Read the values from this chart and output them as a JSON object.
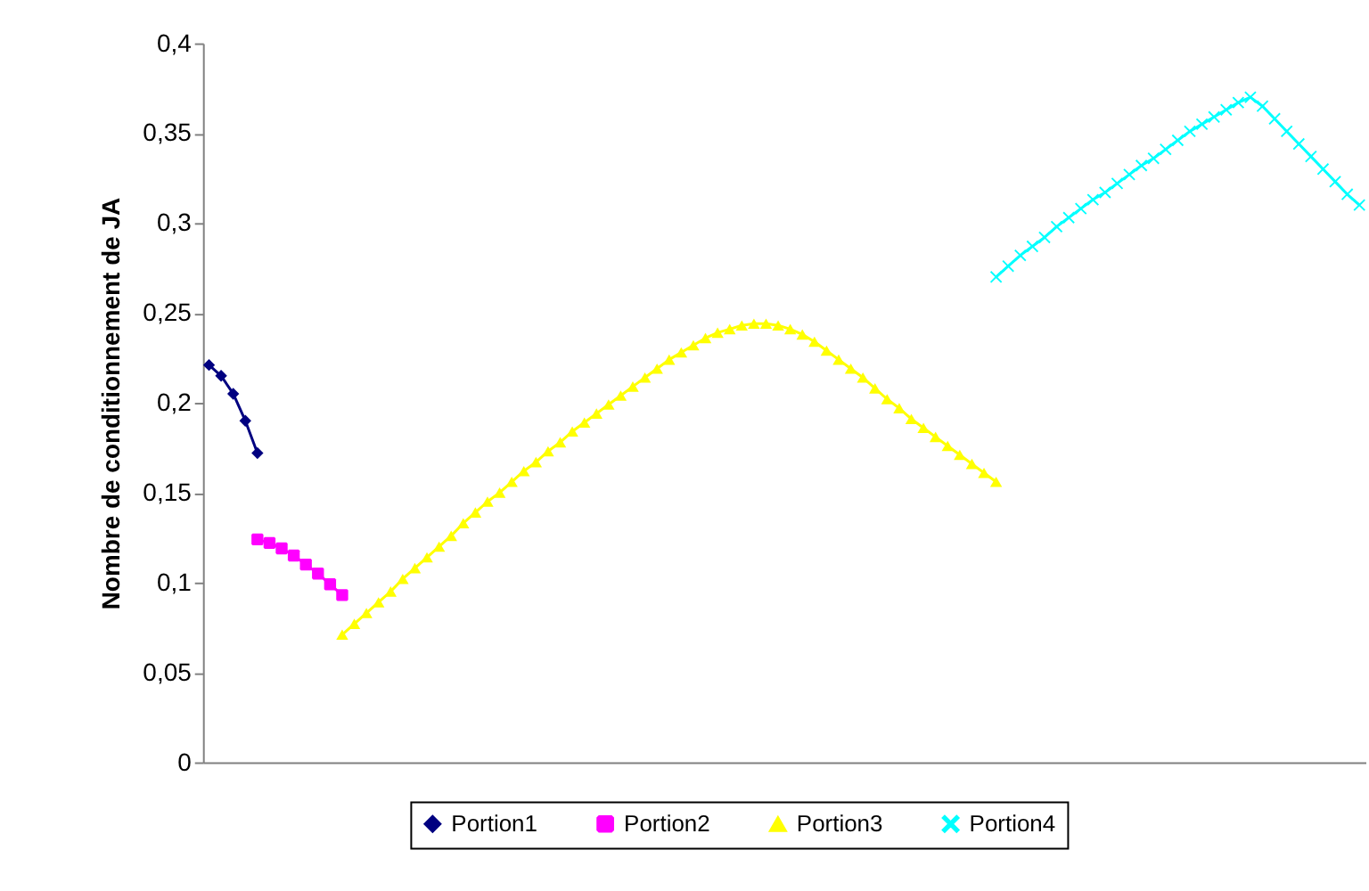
{
  "chart_data": {
    "type": "line",
    "ylabel": "Nombre de conditionnement de JA",
    "categories": [
      null,
      null,
      null,
      null,
      null,
      null,
      null,
      null,
      null,
      null,
      null,
      null,
      null,
      null,
      null,
      null,
      null,
      null,
      null,
      null,
      null,
      null,
      null,
      null,
      null,
      null,
      null,
      null,
      null,
      null,
      null,
      null,
      null,
      null,
      null,
      null,
      null,
      null,
      null,
      null,
      null,
      null,
      null,
      null,
      null,
      null,
      null,
      null,
      null,
      null,
      null,
      null,
      null,
      null,
      null,
      null,
      null,
      null,
      null,
      null,
      null,
      null,
      null,
      null,
      null,
      null,
      null,
      null,
      null,
      null,
      null,
      null,
      null,
      null,
      null,
      null,
      null,
      null,
      null,
      null,
      null,
      null,
      null,
      null,
      null,
      null,
      null,
      null,
      null,
      null,
      null,
      null,
      null,
      null,
      null,
      null
    ],
    "series": [
      {
        "name": "Portion1",
        "color": "#000080",
        "marker": "diamond",
        "values": [
          0.221,
          0.215,
          0.205,
          0.19,
          0.172,
          null,
          null,
          null,
          null,
          null,
          null,
          null,
          null,
          null,
          null,
          null,
          null,
          null,
          null,
          null,
          null,
          null,
          null,
          null,
          null,
          null,
          null,
          null,
          null,
          null,
          null,
          null,
          null,
          null,
          null,
          null,
          null,
          null,
          null,
          null,
          null,
          null,
          null,
          null,
          null,
          null,
          null,
          null,
          null,
          null,
          null,
          null,
          null,
          null,
          null,
          null,
          null,
          null,
          null,
          null,
          null,
          null,
          null,
          null,
          null,
          null,
          null,
          null,
          null,
          null,
          null,
          null,
          null,
          null,
          null,
          null,
          null,
          null,
          null,
          null,
          null,
          null,
          null,
          null,
          null,
          null,
          null,
          null,
          null,
          null,
          null,
          null,
          null,
          null,
          null,
          null
        ]
      },
      {
        "name": "Portion2",
        "color": "#ff00ff",
        "marker": "square",
        "values": [
          null,
          null,
          null,
          null,
          0.124,
          0.122,
          0.119,
          0.115,
          0.11,
          0.105,
          0.099,
          0.093,
          null,
          null,
          null,
          null,
          null,
          null,
          null,
          null,
          null,
          null,
          null,
          null,
          null,
          null,
          null,
          null,
          null,
          null,
          null,
          null,
          null,
          null,
          null,
          null,
          null,
          null,
          null,
          null,
          null,
          null,
          null,
          null,
          null,
          null,
          null,
          null,
          null,
          null,
          null,
          null,
          null,
          null,
          null,
          null,
          null,
          null,
          null,
          null,
          null,
          null,
          null,
          null,
          null,
          null,
          null,
          null,
          null,
          null,
          null,
          null,
          null,
          null,
          null,
          null,
          null,
          null,
          null,
          null,
          null,
          null,
          null,
          null,
          null,
          null,
          null,
          null,
          null,
          null,
          null,
          null,
          null,
          null,
          null,
          null
        ]
      },
      {
        "name": "Portion3",
        "color": "#ffff00",
        "marker": "triangle",
        "values": [
          null,
          null,
          null,
          null,
          null,
          null,
          null,
          null,
          null,
          null,
          null,
          0.071,
          0.077,
          0.083,
          0.089,
          0.095,
          0.102,
          0.108,
          0.114,
          0.12,
          0.126,
          0.133,
          0.139,
          0.145,
          0.15,
          0.156,
          0.162,
          0.167,
          0.173,
          0.178,
          0.184,
          0.189,
          0.194,
          0.199,
          0.204,
          0.209,
          0.214,
          0.219,
          0.224,
          0.228,
          0.232,
          0.236,
          0.239,
          0.241,
          0.243,
          0.244,
          0.244,
          0.243,
          0.241,
          0.238,
          0.234,
          0.229,
          0.224,
          0.219,
          0.214,
          0.208,
          0.202,
          0.197,
          0.191,
          0.186,
          0.181,
          0.176,
          0.171,
          0.166,
          0.161,
          0.156,
          null,
          null,
          null,
          null,
          null,
          null,
          null,
          null,
          null,
          null,
          null,
          null,
          null,
          null,
          null,
          null,
          null,
          null,
          null,
          null,
          null,
          null,
          null,
          null,
          null,
          null,
          null,
          null,
          null,
          null
        ]
      },
      {
        "name": "Portion4",
        "color": "#00ffff",
        "marker": "cross",
        "values": [
          null,
          null,
          null,
          null,
          null,
          null,
          null,
          null,
          null,
          null,
          null,
          null,
          null,
          null,
          null,
          null,
          null,
          null,
          null,
          null,
          null,
          null,
          null,
          null,
          null,
          null,
          null,
          null,
          null,
          null,
          null,
          null,
          null,
          null,
          null,
          null,
          null,
          null,
          null,
          null,
          null,
          null,
          null,
          null,
          null,
          null,
          null,
          null,
          null,
          null,
          null,
          null,
          null,
          null,
          null,
          null,
          null,
          null,
          null,
          null,
          null,
          null,
          null,
          null,
          null,
          0.27,
          0.276,
          0.282,
          0.287,
          0.292,
          0.298,
          0.303,
          0.308,
          0.313,
          0.317,
          0.322,
          0.327,
          0.332,
          0.336,
          0.341,
          0.346,
          0.351,
          0.355,
          0.359,
          0.363,
          0.367,
          0.37,
          0.365,
          0.358,
          0.351,
          0.344,
          0.337,
          0.33,
          0.323,
          0.316,
          0.31
        ]
      }
    ],
    "ylim": [
      0,
      0.4
    ],
    "yticks": [
      {
        "value": 0,
        "label": "0"
      },
      {
        "value": 0.05,
        "label": "0,05"
      },
      {
        "value": 0.1,
        "label": "0,1"
      },
      {
        "value": 0.15,
        "label": "0,15"
      },
      {
        "value": 0.2,
        "label": "0,2"
      },
      {
        "value": 0.25,
        "label": "0,25"
      },
      {
        "value": 0.3,
        "label": "0,3"
      },
      {
        "value": 0.35,
        "label": "0,35"
      },
      {
        "value": 0.4,
        "label": "0,4"
      }
    ],
    "tick_labels": "y",
    "grid": false,
    "legend": "bottom",
    "line_style": "solid"
  }
}
